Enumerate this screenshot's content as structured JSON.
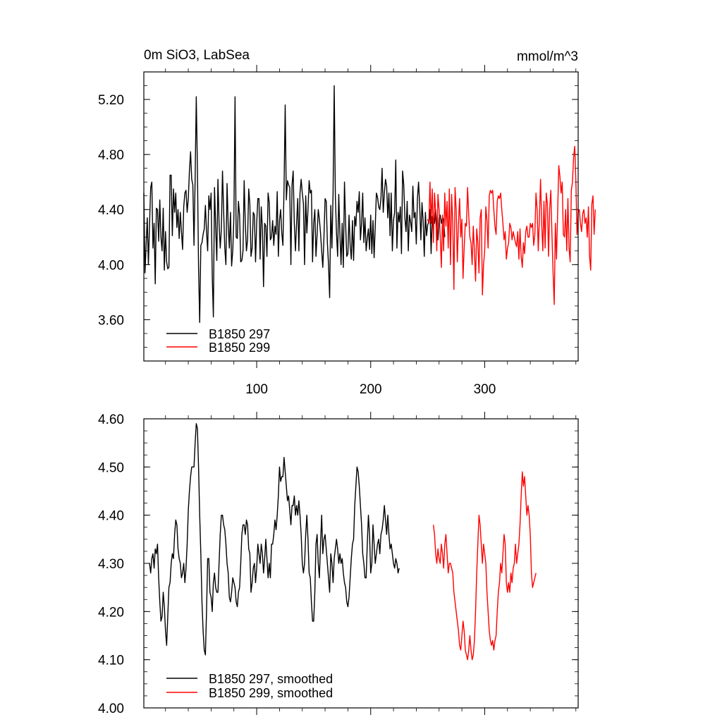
{
  "chart_data": [
    {
      "type": "line",
      "title": "0m SiO3, LabSea",
      "units": "mmol/m^3",
      "xlim": [
        1,
        382
      ],
      "ylim": [
        3.3,
        5.4
      ],
      "x_ticks": [
        100,
        200,
        300
      ],
      "y_ticks": [
        3.6,
        4.0,
        4.4,
        4.8,
        5.2
      ],
      "y_tick_labels": [
        "3.60",
        "4.00",
        "4.40",
        "4.80",
        "5.20"
      ],
      "x_tick_labels": [
        "100",
        "200",
        "300"
      ],
      "series": [
        {
          "name": "B1850 297",
          "color": "#000000",
          "x_start": 1,
          "values": [
            4.52,
            3.94,
            4.14,
            4.34,
            4.0,
            4.29,
            4.56,
            4.6,
            4.12,
            4.3,
            3.86,
            4.41,
            4.4,
            4.17,
            4.47,
            4.2,
            4.1,
            4.41,
            3.96,
            4.24,
            4.02,
            3.97,
            3.98,
            4.65,
            4.65,
            4.21,
            4.55,
            4.38,
            4.52,
            4.27,
            4.4,
            4.19,
            4.38,
            4.24,
            4.11,
            4.42,
            4.52,
            4.54,
            4.38,
            4.48,
            4.68,
            4.82,
            4.62,
            4.58,
            4.14,
            4.62,
            5.22,
            4.7,
            3.98,
            3.58,
            4.14,
            4.16,
            4.22,
            4.26,
            4.43,
            4.24,
            4.1,
            4.5,
            4.4,
            4.52,
            3.92,
            3.62,
            4.56,
            4.28,
            4.03,
            4.62,
            4.3,
            4.12,
            4.26,
            4.68,
            4.39,
            4.12,
            4.0,
            4.59,
            4.29,
            4.12,
            4.38,
            3.99,
            4.1,
            4.34,
            5.22,
            4.2,
            4.19,
            4.46,
            4.36,
            4.02,
            4.03,
            4.1,
            4.61,
            4.3,
            4.1,
            4.18,
            4.55,
            4.44,
            4.06,
            4.12,
            4.38,
            4.36,
            4.02,
            4.3,
            4.48,
            4.48,
            4.04,
            4.42,
            4.26,
            3.84,
            4.3,
            4.28,
            4.06,
            4.52,
            4.45,
            4.18,
            4.2,
            4.32,
            4.14,
            4.28,
            4.22,
            4.53,
            4.06,
            4.32,
            4.4,
            4.23,
            4.14,
            4.56,
            5.16,
            4.47,
            4.61,
            4.58,
            4.56,
            4.0,
            4.58,
            4.68,
            4.3,
            4.1,
            4.3,
            4.48,
            4.1,
            4.52,
            4.62,
            4.52,
            4.44,
            4.0,
            4.5,
            4.23,
            4.4,
            4.61,
            4.52,
            4.54,
            4.02,
            4.3,
            4.4,
            4.06,
            4.22,
            4.4,
            4.33,
            4.23,
            4.1,
            3.98,
            4.2,
            4.48,
            4.46,
            4.16,
            4.0,
            3.76,
            4.43,
            4.12,
            4.52,
            5.3,
            4.5,
            4.23,
            4.06,
            4.51,
            4.22,
            4.0,
            4.3,
            3.98,
            4.6,
            4.3,
            4.06,
            4.08,
            4.36,
            4.14,
            4.04,
            4.32,
            4.03,
            4.35,
            4.28,
            4.46,
            4.38,
            4.53,
            4.18,
            4.3,
            4.52,
            4.16,
            4.34,
            4.1,
            4.19,
            4.26,
            4.11,
            4.36,
            4.08,
            4.32,
            4.05,
            4.28,
            4.52,
            4.49,
            4.42,
            4.4,
            4.48,
            4.7,
            4.38,
            4.52,
            4.62,
            4.57,
            4.34,
            4.52,
            4.21,
            4.52,
            4.1,
            4.32,
            4.38,
            4.76,
            4.12,
            4.38,
            4.31,
            4.42,
            4.08,
            4.68,
            4.58,
            4.34,
            4.24,
            4.46,
            4.1,
            4.36,
            4.31,
            4.24,
            4.57,
            4.34,
            4.38,
            4.15,
            4.48,
            4.6,
            4.42,
            4.18,
            4.45,
            4.32,
            4.06,
            4.38,
            4.21,
            4.29,
            4.31,
            4.4,
            4.08,
            4.35,
            4.33,
            4.3,
            4.4,
            4.3,
            4.18,
            4.34,
            4.36,
            4.3,
            4.34,
            4.33,
            4.2
          ]
        },
        {
          "name": "B1850 299",
          "color": "#ff0000",
          "x_start": 250,
          "values": [
            4.33,
            4.3,
            4.6,
            4.3,
            4.55,
            4.16,
            4.52,
            4.38,
            4.1,
            4.51,
            4.4,
            4.2,
            3.98,
            4.36,
            4.1,
            4.52,
            4.28,
            4.46,
            4.12,
            4.55,
            4.0,
            4.51,
            4.3,
            3.82,
            4.56,
            4.4,
            4.02,
            4.3,
            4.48,
            4.2,
            4.33,
            3.9,
            4.12,
            4.3,
            4.28,
            4.56,
            4.36,
            4.2,
            4.16,
            4.0,
            4.28,
            4.1,
            3.88,
            4.26,
            4.16,
            3.94,
            4.34,
            4.4,
            3.78,
            4.0,
            4.1,
            4.42,
            4.32,
            4.12,
            4.5,
            4.54,
            4.52,
            4.54,
            4.4,
            4.28,
            4.22,
            4.46,
            4.5,
            4.48,
            4.52,
            4.4,
            4.3,
            4.18,
            4.24,
            4.04,
            4.12,
            4.16,
            4.3,
            4.27,
            4.18,
            4.24,
            4.2,
            4.16,
            4.13,
            4.24,
            4.04,
            4.26,
            4.06,
            3.98,
            4.16,
            4.08,
            4.24,
            4.28,
            4.2,
            4.2,
            4.3,
            4.27,
            4.3,
            4.14,
            4.22,
            4.52,
            4.4,
            4.1,
            4.34,
            4.62,
            4.3,
            4.1,
            4.46,
            4.12,
            4.52,
            4.44,
            4.06,
            4.4,
            4.54,
            4.22,
            3.94,
            3.71,
            4.3,
            4.04,
            4.38,
            4.72,
            4.64,
            4.52,
            4.6,
            4.22,
            4.2,
            4.4,
            4.1,
            4.48,
            4.12,
            4.02,
            4.54,
            4.6,
            4.78,
            4.86,
            4.6,
            4.22,
            4.38,
            4.4,
            4.3,
            4.24,
            4.37,
            4.4,
            4.3,
            4.34,
            4.2,
            4.42,
            4.06,
            3.96,
            4.44,
            4.5,
            4.22,
            4.4
          ]
        }
      ]
    },
    {
      "type": "line",
      "title": "",
      "xlim": [
        1,
        382
      ],
      "ylim": [
        4.0,
        4.6
      ],
      "x_ticks": [
        100,
        200,
        300
      ],
      "y_ticks": [
        4.0,
        4.1,
        4.2,
        4.3,
        4.4,
        4.5,
        4.6
      ],
      "y_tick_labels": [
        "4.00",
        "4.10",
        "4.20",
        "4.30",
        "4.40",
        "4.50",
        "4.60"
      ],
      "series": [
        {
          "name": "B1850 297, smoothed",
          "color": "#000000",
          "x_start": 6,
          "values": [
            4.3,
            4.28,
            4.31,
            4.32,
            4.29,
            4.33,
            4.32,
            4.34,
            4.27,
            4.22,
            4.18,
            4.19,
            4.24,
            4.21,
            4.16,
            4.13,
            4.19,
            4.25,
            4.26,
            4.3,
            4.32,
            4.31,
            4.36,
            4.39,
            4.38,
            4.33,
            4.31,
            4.3,
            4.27,
            4.28,
            4.3,
            4.26,
            4.29,
            4.34,
            4.41,
            4.45,
            4.48,
            4.5,
            4.5,
            4.5,
            4.55,
            4.59,
            4.58,
            4.5,
            4.4,
            4.32,
            4.22,
            4.16,
            4.12,
            4.11,
            4.2,
            4.31,
            4.31,
            4.24,
            4.23,
            4.2,
            4.26,
            4.28,
            4.25,
            4.24,
            4.24,
            4.3,
            4.36,
            4.4,
            4.4,
            4.38,
            4.37,
            4.34,
            4.3,
            4.28,
            4.23,
            4.22,
            4.24,
            4.27,
            4.26,
            4.25,
            4.22,
            4.21,
            4.24,
            4.25,
            4.3,
            4.36,
            4.38,
            4.38,
            4.36,
            4.39,
            4.38,
            4.33,
            4.32,
            4.24,
            4.26,
            4.29,
            4.3,
            4.26,
            4.29,
            4.34,
            4.32,
            4.3,
            4.34,
            4.32,
            4.28,
            4.31,
            4.35,
            4.31,
            4.27,
            4.3,
            4.27,
            4.34,
            4.34,
            4.36,
            4.39,
            4.37,
            4.4,
            4.44,
            4.5,
            4.47,
            4.48,
            4.48,
            4.52,
            4.49,
            4.46,
            4.43,
            4.44,
            4.41,
            4.38,
            4.42,
            4.42,
            4.44,
            4.4,
            4.42,
            4.4,
            4.43,
            4.4,
            4.36,
            4.3,
            4.28,
            4.3,
            4.36,
            4.4,
            4.35,
            4.28,
            4.27,
            4.22,
            4.18,
            4.18,
            4.24,
            4.34,
            4.36,
            4.3,
            4.27,
            4.34,
            4.4,
            4.32,
            4.35,
            4.36,
            4.33,
            4.3,
            4.27,
            4.24,
            4.32,
            4.3,
            4.26,
            4.31,
            4.33,
            4.35,
            4.33,
            4.3,
            4.32,
            4.3,
            4.31,
            4.28,
            4.26,
            4.25,
            4.22,
            4.21,
            4.23,
            4.27,
            4.31,
            4.34,
            4.35,
            4.42,
            4.46,
            4.5,
            4.49,
            4.46,
            4.42,
            4.38,
            4.32,
            4.3,
            4.27,
            4.27,
            4.34,
            4.4,
            4.36,
            4.28,
            4.3,
            4.38,
            4.34,
            4.3,
            4.32,
            4.34,
            4.35,
            4.32,
            4.36,
            4.37,
            4.39,
            4.42,
            4.39,
            4.36,
            4.4,
            4.36,
            4.33,
            4.34,
            4.32,
            4.3,
            4.29,
            4.31,
            4.3,
            4.28,
            4.29
          ]
        },
        {
          "name": "B1850 299, smoothed",
          "color": "#ff0000",
          "x_start": 255,
          "values": [
            4.38,
            4.36,
            4.32,
            4.3,
            4.33,
            4.31,
            4.3,
            4.34,
            4.32,
            4.29,
            4.34,
            4.36,
            4.32,
            4.28,
            4.3,
            4.3,
            4.29,
            4.28,
            4.24,
            4.22,
            4.2,
            4.18,
            4.16,
            4.13,
            4.12,
            4.15,
            4.18,
            4.16,
            4.12,
            4.11,
            4.1,
            4.12,
            4.15,
            4.12,
            4.1,
            4.11,
            4.14,
            4.2,
            4.28,
            4.34,
            4.4,
            4.38,
            4.34,
            4.3,
            4.34,
            4.32,
            4.3,
            4.24,
            4.2,
            4.16,
            4.14,
            4.13,
            4.14,
            4.12,
            4.14,
            4.15,
            4.2,
            4.24,
            4.26,
            4.3,
            4.28,
            4.32,
            4.36,
            4.34,
            4.26,
            4.24,
            4.26,
            4.24,
            4.28,
            4.26,
            4.29,
            4.3,
            4.34,
            4.3,
            4.32,
            4.34,
            4.38,
            4.44,
            4.49,
            4.46,
            4.48,
            4.44,
            4.4,
            4.42,
            4.4,
            4.36,
            4.28,
            4.25,
            4.26,
            4.27,
            4.28
          ]
        }
      ]
    }
  ],
  "top_panel": {
    "title": "0m SiO3, LabSea",
    "units": "mmol/m^3",
    "legend": [
      "B1850 297",
      "B1850 299"
    ]
  },
  "bottom_panel": {
    "legend": [
      "B1850 297, smoothed",
      "B1850 299, smoothed"
    ]
  }
}
